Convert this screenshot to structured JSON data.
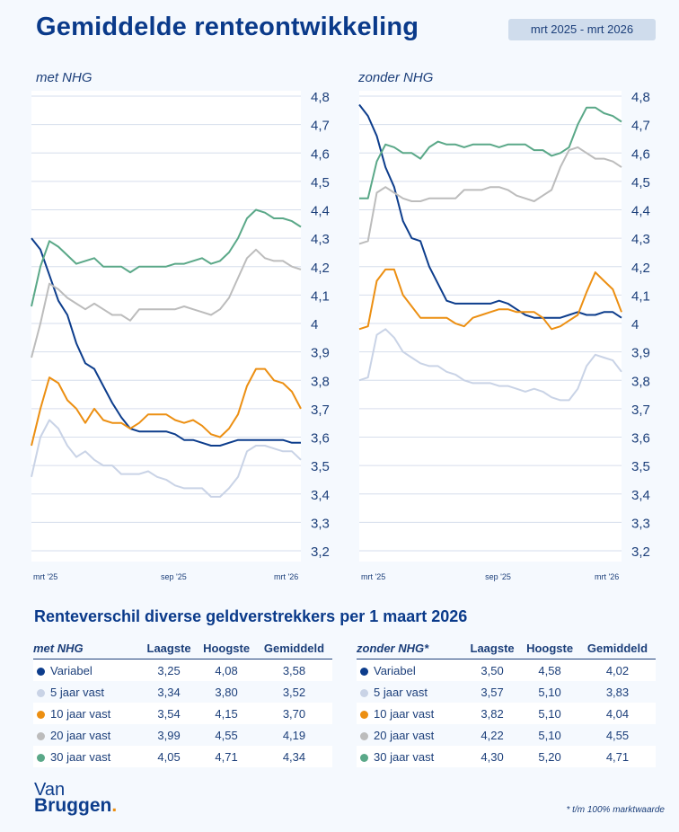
{
  "header": {
    "title": "Gemiddelde renteontwikkeling",
    "period": "mrt 2025 - mrt 2026"
  },
  "colors": {
    "Variabel": "#0d3d8c",
    "5 jaar vast": "#c9d3e6",
    "10 jaar vast": "#ec8f12",
    "20 jaar vast": "#bcbcbc",
    "30 jaar vast": "#5aa888",
    "title": "#0a3a8a",
    "background": "#f5f9fe"
  },
  "chart_data": [
    {
      "type": "line",
      "title": "met NHG",
      "ylim": [
        3.2,
        4.8
      ],
      "yticks": [
        "4,8",
        "4,7",
        "4,6",
        "4,5",
        "4,4",
        "4,3",
        "4,2",
        "4,1",
        "4",
        "3,9",
        "3,8",
        "3,7",
        "3,6",
        "3,5",
        "3,4",
        "3,3",
        "3,2"
      ],
      "xticks": [
        "mrt '25",
        "sep '25",
        "mrt '26"
      ],
      "grid": true,
      "legend": "none",
      "series": [
        {
          "key": "Variabel",
          "values": [
            4.3,
            4.26,
            4.17,
            4.08,
            4.03,
            3.93,
            3.86,
            3.84,
            3.78,
            3.72,
            3.67,
            3.63,
            3.62,
            3.62,
            3.62,
            3.62,
            3.61,
            3.59,
            3.59,
            3.58,
            3.57,
            3.57,
            3.58,
            3.59,
            3.59,
            3.59,
            3.59,
            3.59,
            3.59,
            3.58,
            3.58
          ]
        },
        {
          "key": "5 jaar vast",
          "values": [
            3.46,
            3.6,
            3.66,
            3.63,
            3.57,
            3.53,
            3.55,
            3.52,
            3.5,
            3.5,
            3.47,
            3.47,
            3.47,
            3.48,
            3.46,
            3.45,
            3.43,
            3.42,
            3.42,
            3.42,
            3.39,
            3.39,
            3.42,
            3.46,
            3.55,
            3.57,
            3.57,
            3.56,
            3.55,
            3.55,
            3.52
          ]
        },
        {
          "key": "10 jaar vast",
          "values": [
            3.57,
            3.7,
            3.81,
            3.79,
            3.73,
            3.7,
            3.65,
            3.7,
            3.66,
            3.65,
            3.65,
            3.63,
            3.65,
            3.68,
            3.68,
            3.68,
            3.66,
            3.65,
            3.66,
            3.64,
            3.61,
            3.6,
            3.63,
            3.68,
            3.78,
            3.84,
            3.84,
            3.8,
            3.79,
            3.76,
            3.7
          ]
        },
        {
          "key": "20 jaar vast",
          "values": [
            3.88,
            4.0,
            4.14,
            4.12,
            4.09,
            4.07,
            4.05,
            4.07,
            4.05,
            4.03,
            4.03,
            4.01,
            4.05,
            4.05,
            4.05,
            4.05,
            4.05,
            4.06,
            4.05,
            4.04,
            4.03,
            4.05,
            4.09,
            4.16,
            4.23,
            4.26,
            4.23,
            4.22,
            4.22,
            4.2,
            4.19
          ]
        },
        {
          "key": "30 jaar vast",
          "values": [
            4.06,
            4.2,
            4.29,
            4.27,
            4.24,
            4.21,
            4.22,
            4.23,
            4.2,
            4.2,
            4.2,
            4.18,
            4.2,
            4.2,
            4.2,
            4.2,
            4.21,
            4.21,
            4.22,
            4.23,
            4.21,
            4.22,
            4.25,
            4.3,
            4.37,
            4.4,
            4.39,
            4.37,
            4.37,
            4.36,
            4.34
          ]
        }
      ]
    },
    {
      "type": "line",
      "title": "zonder NHG",
      "ylim": [
        3.2,
        4.8
      ],
      "yticks": [
        "4,8",
        "4,7",
        "4,6",
        "4,5",
        "4,4",
        "4,3",
        "4,2",
        "4,1",
        "4",
        "3,9",
        "3,8",
        "3,7",
        "3,6",
        "3,5",
        "3,4",
        "3,3",
        "3,2"
      ],
      "xticks": [
        "mrt '25",
        "sep '25",
        "mrt '26"
      ],
      "grid": true,
      "legend": "none",
      "series": [
        {
          "key": "Variabel",
          "values": [
            4.77,
            4.73,
            4.66,
            4.55,
            4.48,
            4.36,
            4.3,
            4.29,
            4.2,
            4.14,
            4.08,
            4.07,
            4.07,
            4.07,
            4.07,
            4.07,
            4.08,
            4.07,
            4.05,
            4.03,
            4.02,
            4.02,
            4.02,
            4.02,
            4.03,
            4.04,
            4.03,
            4.03,
            4.04,
            4.04,
            4.02
          ]
        },
        {
          "key": "5 jaar vast",
          "values": [
            3.8,
            3.81,
            3.96,
            3.98,
            3.95,
            3.9,
            3.88,
            3.86,
            3.85,
            3.85,
            3.83,
            3.82,
            3.8,
            3.79,
            3.79,
            3.79,
            3.78,
            3.78,
            3.77,
            3.76,
            3.77,
            3.76,
            3.74,
            3.73,
            3.73,
            3.77,
            3.85,
            3.89,
            3.88,
            3.87,
            3.83
          ]
        },
        {
          "key": "10 jaar vast",
          "values": [
            3.98,
            3.99,
            4.15,
            4.19,
            4.19,
            4.1,
            4.06,
            4.02,
            4.02,
            4.02,
            4.02,
            4.0,
            3.99,
            4.02,
            4.03,
            4.04,
            4.05,
            4.05,
            4.04,
            4.04,
            4.04,
            4.02,
            3.98,
            3.99,
            4.01,
            4.03,
            4.11,
            4.18,
            4.15,
            4.12,
            4.04
          ]
        },
        {
          "key": "20 jaar vast",
          "values": [
            4.28,
            4.29,
            4.46,
            4.48,
            4.46,
            4.44,
            4.43,
            4.43,
            4.44,
            4.44,
            4.44,
            4.44,
            4.47,
            4.47,
            4.47,
            4.48,
            4.48,
            4.47,
            4.45,
            4.44,
            4.43,
            4.45,
            4.47,
            4.55,
            4.61,
            4.62,
            4.6,
            4.58,
            4.58,
            4.57,
            4.55
          ]
        },
        {
          "key": "30 jaar vast",
          "values": [
            4.44,
            4.44,
            4.57,
            4.63,
            4.62,
            4.6,
            4.6,
            4.58,
            4.62,
            4.64,
            4.63,
            4.63,
            4.62,
            4.63,
            4.63,
            4.63,
            4.62,
            4.63,
            4.63,
            4.63,
            4.61,
            4.61,
            4.59,
            4.6,
            4.62,
            4.7,
            4.76,
            4.76,
            4.74,
            4.73,
            4.71
          ]
        }
      ]
    }
  ],
  "table_title": "Renteverschil diverse geldverstrekkers per 1 maart 2026",
  "tables": [
    {
      "label": "met NHG",
      "columns": [
        "Laagste",
        "Hoogste",
        "Gemiddeld"
      ],
      "rows": [
        {
          "name": "Variabel",
          "low": "3,25",
          "high": "4,08",
          "avg": "3,58"
        },
        {
          "name": "5 jaar vast",
          "low": "3,34",
          "high": "3,80",
          "avg": "3,52"
        },
        {
          "name": "10 jaar vast",
          "low": "3,54",
          "high": "4,15",
          "avg": "3,70"
        },
        {
          "name": "20 jaar vast",
          "low": "3,99",
          "high": "4,55",
          "avg": "4,19"
        },
        {
          "name": "30 jaar vast",
          "low": "4,05",
          "high": "4,71",
          "avg": "4,34"
        }
      ]
    },
    {
      "label": "zonder NHG*",
      "columns": [
        "Laagste",
        "Hoogste",
        "Gemiddeld"
      ],
      "rows": [
        {
          "name": "Variabel",
          "low": "3,50",
          "high": "4,58",
          "avg": "4,02"
        },
        {
          "name": "5 jaar vast",
          "low": "3,57",
          "high": "5,10",
          "avg": "3,83"
        },
        {
          "name": "10 jaar vast",
          "low": "3,82",
          "high": "5,10",
          "avg": "4,04"
        },
        {
          "name": "20 jaar vast",
          "low": "4,22",
          "high": "5,10",
          "avg": "4,55"
        },
        {
          "name": "30 jaar vast",
          "low": "4,30",
          "high": "5,20",
          "avg": "4,71"
        }
      ]
    }
  ],
  "logo": {
    "line1": "Van",
    "line2": "Bruggen",
    "dot": "."
  },
  "footnote": "* t/m 100% marktwaarde"
}
